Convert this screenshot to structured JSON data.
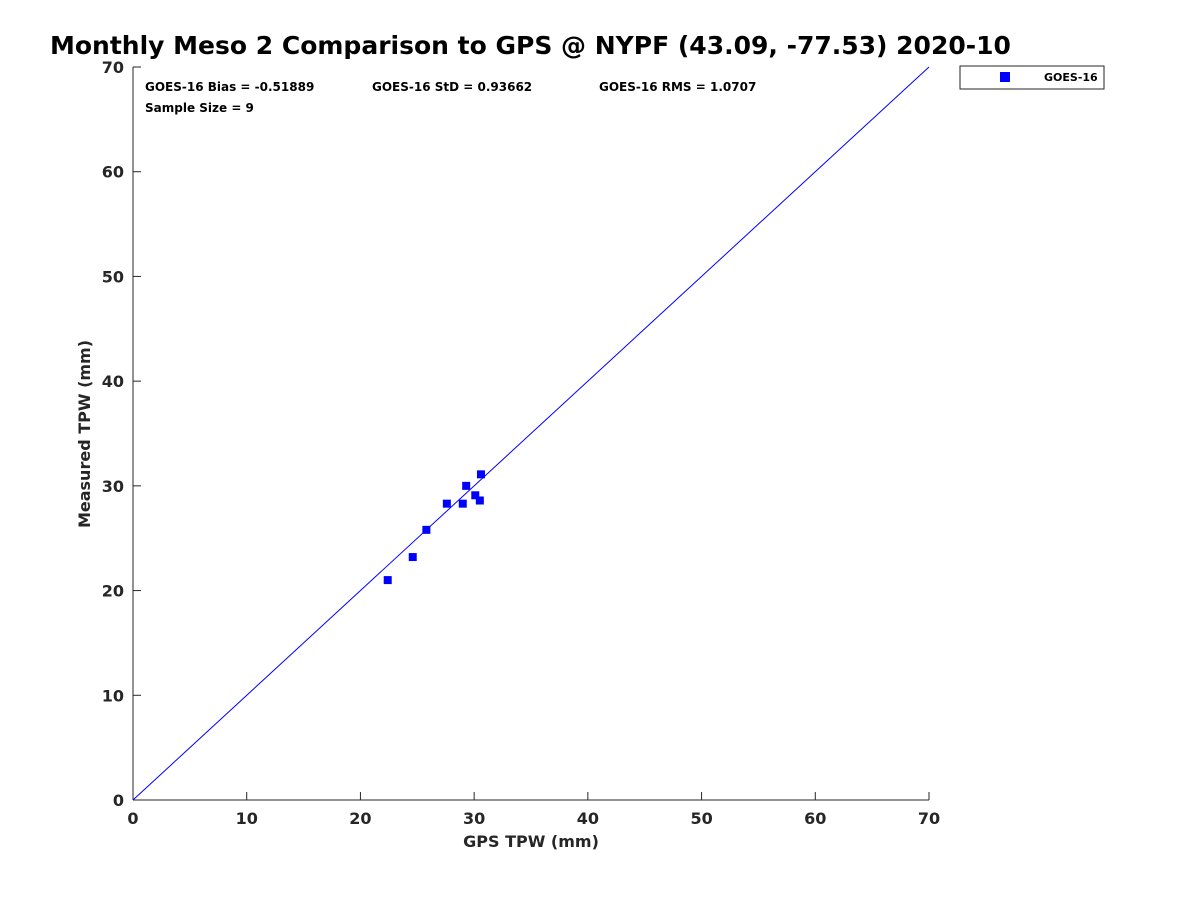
{
  "chart_data": {
    "type": "scatter",
    "title": "Monthly Meso 2 Comparison to GPS @ NYPF (43.09, -77.53) 2020-10",
    "xlabel": "GPS TPW (mm)",
    "ylabel": "Measured TPW (mm)",
    "xlim": [
      0,
      70
    ],
    "ylim": [
      0,
      70
    ],
    "x_ticks": [
      "0",
      "10",
      "20",
      "30",
      "40",
      "50",
      "60",
      "70"
    ],
    "y_ticks": [
      "0",
      "10",
      "20",
      "30",
      "40",
      "50",
      "60",
      "70"
    ],
    "grid": false,
    "legend_position": "outside-top-right",
    "reference_line": {
      "type": "one-to-one",
      "color": "#0000ff"
    },
    "series": [
      {
        "name": "GOES-16",
        "color": "#0000ff",
        "marker": "square",
        "points": [
          {
            "x": 22.4,
            "y": 21.0
          },
          {
            "x": 24.6,
            "y": 23.2
          },
          {
            "x": 25.8,
            "y": 25.8
          },
          {
            "x": 27.6,
            "y": 28.3
          },
          {
            "x": 29.0,
            "y": 28.3
          },
          {
            "x": 29.3,
            "y": 30.0
          },
          {
            "x": 30.1,
            "y": 29.1
          },
          {
            "x": 30.5,
            "y": 28.6
          },
          {
            "x": 30.6,
            "y": 31.1
          }
        ]
      }
    ],
    "annotations": {
      "bias": "GOES-16 Bias = -0.51889",
      "std": "GOES-16 StD = 0.93662",
      "rms": "GOES-16 RMS = 1.0707",
      "sample_size": "Sample Size = 9"
    }
  }
}
